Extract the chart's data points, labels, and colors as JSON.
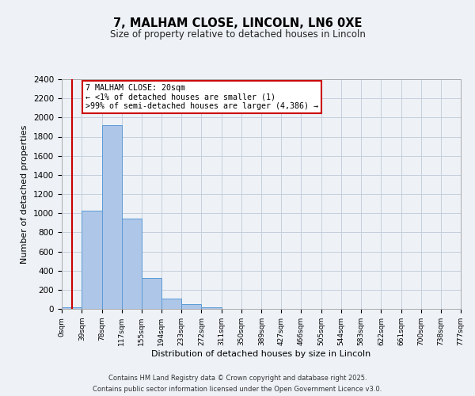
{
  "title": "7, MALHAM CLOSE, LINCOLN, LN6 0XE",
  "subtitle": "Size of property relative to detached houses in Lincoln",
  "xlabel": "Distribution of detached houses by size in Lincoln",
  "ylabel": "Number of detached properties",
  "bar_values": [
    20,
    1030,
    1920,
    940,
    320,
    105,
    50,
    20,
    0,
    0,
    0,
    0,
    0,
    0,
    0,
    0,
    0,
    0,
    0,
    0
  ],
  "bin_edges": [
    0,
    39,
    78,
    117,
    155,
    194,
    233,
    272,
    311,
    350,
    389,
    427,
    466,
    505,
    544,
    583,
    622,
    661,
    700,
    738,
    777
  ],
  "tick_labels": [
    "0sqm",
    "39sqm",
    "78sqm",
    "117sqm",
    "155sqm",
    "194sqm",
    "233sqm",
    "272sqm",
    "311sqm",
    "350sqm",
    "389sqm",
    "427sqm",
    "466sqm",
    "505sqm",
    "544sqm",
    "583sqm",
    "622sqm",
    "661sqm",
    "700sqm",
    "738sqm",
    "777sqm"
  ],
  "bar_color": "#aec6e8",
  "bar_edge_color": "#5b9bd5",
  "ylim": [
    0,
    2400
  ],
  "yticks": [
    0,
    200,
    400,
    600,
    800,
    1000,
    1200,
    1400,
    1600,
    1800,
    2000,
    2200,
    2400
  ],
  "red_line_x": 20,
  "annotation_title": "7 MALHAM CLOSE: 20sqm",
  "annotation_line1": "← <1% of detached houses are smaller (1)",
  "annotation_line2": ">99% of semi-detached houses are larger (4,386) →",
  "footer1": "Contains HM Land Registry data © Crown copyright and database right 2025.",
  "footer2": "Contains public sector information licensed under the Open Government Licence v3.0.",
  "bg_color": "#eef2f7",
  "grid_color": "#c5cfdc",
  "annotation_box_color": "#ffffff",
  "annotation_box_edge": "#cc0000"
}
